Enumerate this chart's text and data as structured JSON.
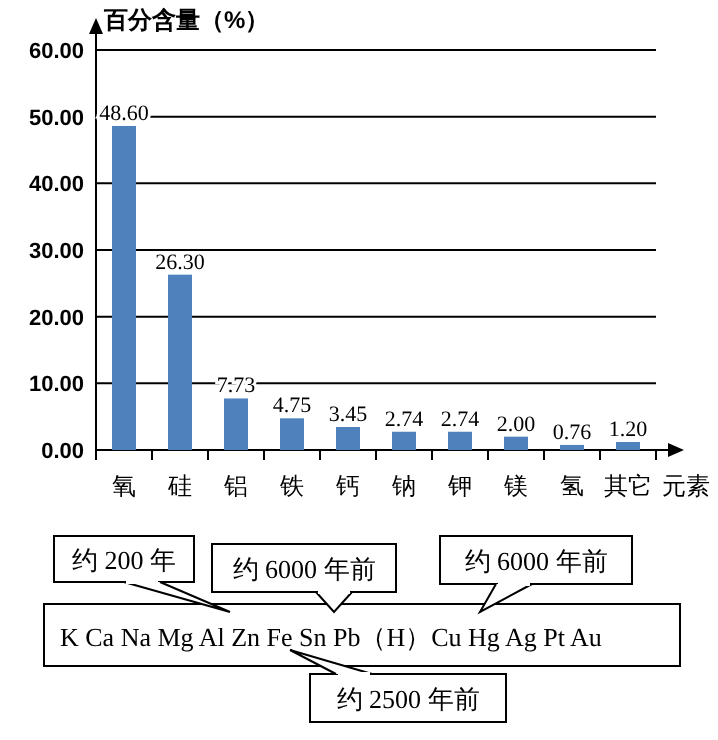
{
  "chart_data": {
    "type": "bar",
    "ylabel": "百分含量（%）",
    "xlabel": "元素",
    "categories": [
      "氧",
      "硅",
      "铝",
      "铁",
      "钙",
      "钠",
      "钾",
      "镁",
      "氢",
      "其它"
    ],
    "values": [
      48.6,
      26.3,
      7.73,
      4.75,
      3.45,
      2.74,
      2.74,
      2.0,
      0.76,
      1.2
    ],
    "value_labels": [
      "48.60",
      "26.30",
      "7.73",
      "4.75",
      "3.45",
      "2.74",
      "2.74",
      "2.00",
      "0.76",
      "1.20"
    ],
    "color": "#4f81bd",
    "ylim": [
      0,
      60
    ],
    "yticks": [
      {
        "value": 0,
        "label": "0.00"
      },
      {
        "value": 10,
        "label": "10.00"
      },
      {
        "value": 20,
        "label": "20.00"
      },
      {
        "value": 30,
        "label": "30.00"
      },
      {
        "value": 40,
        "label": "40.00"
      },
      {
        "value": 50,
        "label": "50.00"
      },
      {
        "value": 60,
        "label": "60.00"
      }
    ],
    "grid": "y",
    "annotations": [
      "K Ca Na Mg Al Zn Fe Sn Pb（H）Cu Hg Ag Pt Au",
      "约 200 年",
      "约 6000 年前",
      "约 6000 年前",
      "约 2500 年前"
    ]
  }
}
